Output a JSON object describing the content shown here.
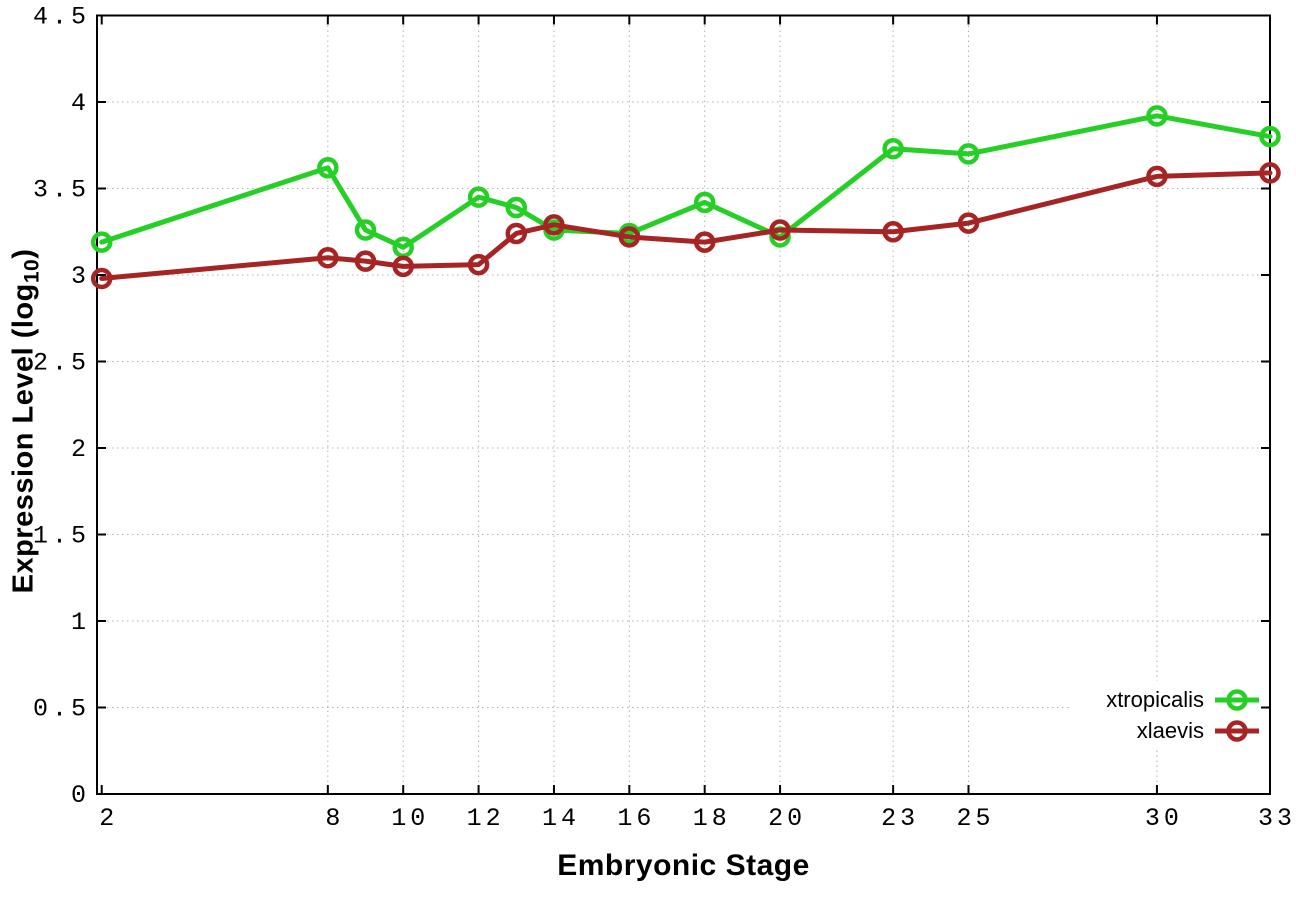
{
  "figure": {
    "background": "#ffffff",
    "xlabel": "Embryonic Stage",
    "ylabel_main": "Expression Level (log",
    "ylabel_sub": "10",
    "ylabel_close": ")"
  },
  "chart_data": {
    "type": "line",
    "title": "",
    "xlabel": "Embryonic Stage",
    "ylabel": "Expression Level (log10)",
    "x": [
      2,
      8,
      9,
      10,
      12,
      13,
      14,
      16,
      18,
      20,
      23,
      25,
      30,
      33
    ],
    "series": [
      {
        "name": "xtropicalis",
        "color": "#26cf26",
        "marker": "open-circle",
        "values": [
          3.19,
          3.62,
          3.26,
          3.16,
          3.45,
          3.39,
          3.26,
          3.24,
          3.42,
          3.22,
          3.73,
          3.7,
          3.92,
          3.8
        ]
      },
      {
        "name": "xlaevis",
        "color": "#a62424",
        "marker": "open-circle",
        "values": [
          2.98,
          3.1,
          3.08,
          3.05,
          3.06,
          3.24,
          3.29,
          3.22,
          3.19,
          3.26,
          3.25,
          3.3,
          3.57,
          3.59
        ]
      }
    ],
    "x_ticks": [
      2,
      8,
      10,
      12,
      14,
      16,
      18,
      20,
      23,
      25,
      30,
      33
    ],
    "y_tick_labels": [
      "0",
      "0.5",
      "1",
      "1.5",
      "2",
      "2.5",
      "3",
      "3.5",
      "4",
      "4.5"
    ],
    "xlim": [
      1.875,
      33
    ],
    "ylim": [
      0,
      4.5
    ],
    "grid": true,
    "grid_color": "#b3b3b3",
    "border_color": "#000000",
    "legend_position": "inside-bottom-right"
  }
}
